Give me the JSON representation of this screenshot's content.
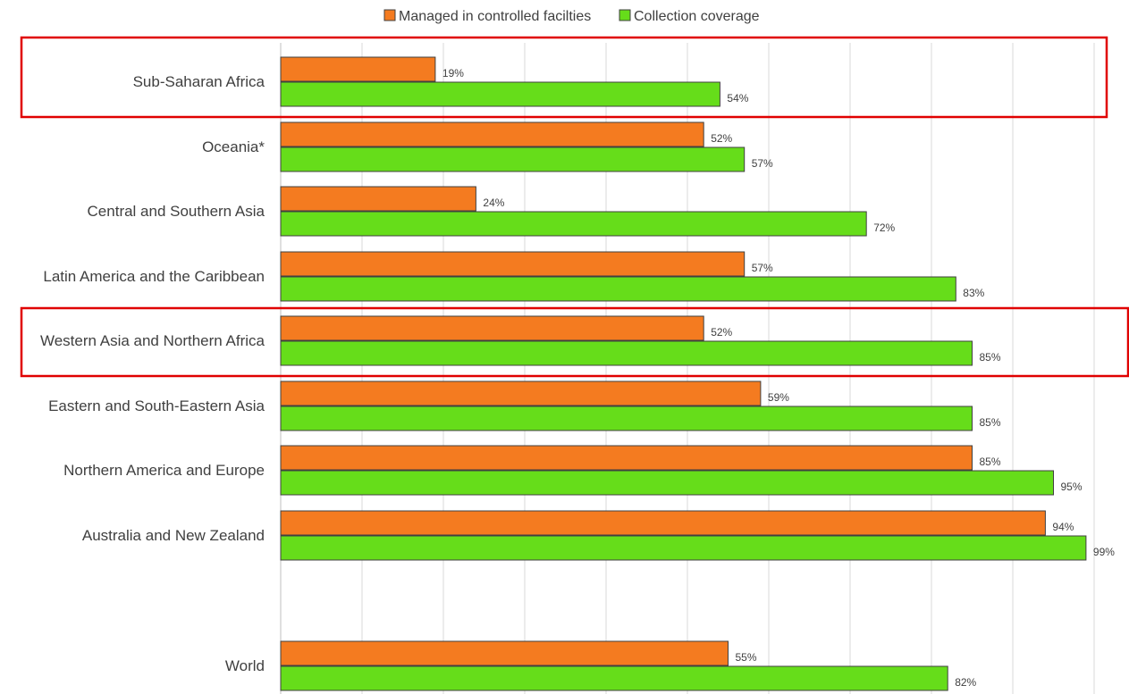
{
  "chart_data": {
    "type": "bar",
    "orientation": "horizontal",
    "categories": [
      "Sub-Saharan Africa",
      "Oceania*",
      "Central and Southern Asia",
      "Latin America and the Caribbean",
      "Western Asia and Northern Africa",
      "Eastern and South-Eastern Asia",
      "Northern America and Europe",
      "Australia and New Zealand",
      "World"
    ],
    "series": [
      {
        "name": "Managed in controlled facilties",
        "color": "#f47b20",
        "values": [
          19,
          52,
          24,
          57,
          52,
          59,
          85,
          94,
          55
        ],
        "labels": [
          "19%",
          "52%",
          "24%",
          "57%",
          "52%",
          "59%",
          "85%",
          "94%",
          "55%"
        ]
      },
      {
        "name": "Collection coverage",
        "color": "#66dd1a",
        "values": [
          54,
          57,
          72,
          83,
          85,
          85,
          95,
          99,
          82
        ],
        "labels": [
          "54%",
          "57%",
          "72%",
          "83%",
          "85%",
          "85%",
          "95%",
          "99%",
          "82%"
        ]
      }
    ],
    "xlim": [
      0,
      100
    ],
    "grid": true,
    "legend": "top",
    "highlighted_categories": [
      "Sub-Saharan Africa",
      "Western Asia and Northern Africa"
    ],
    "highlight_color": "#e00000"
  }
}
